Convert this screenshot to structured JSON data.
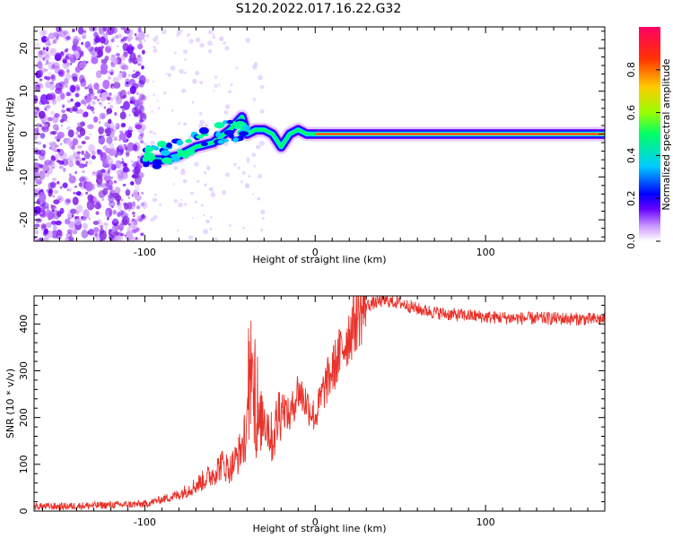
{
  "title": "S120.2022.017.16.22.G32",
  "chart_data": [
    {
      "type": "heatmap",
      "title": "S120.2022.017.16.22.G32",
      "xlabel": "Height of straight line (km)",
      "ylabel": "Frequency (Hz)",
      "xlim": [
        -165,
        170
      ],
      "ylim": [
        -25,
        25
      ],
      "x_ticks": [
        "-100",
        "0",
        "100"
      ],
      "y_ticks": [
        "20",
        "10",
        "0",
        "-10",
        "-20"
      ],
      "colorbar": {
        "label": "Normalized spectral amplitude",
        "range": [
          0,
          1
        ],
        "ticks": [
          "0.0",
          "0.2",
          "0.4",
          "0.6",
          "0.8"
        ],
        "colors": [
          "#ffffff",
          "#cc99ff",
          "#6600ff",
          "#0000ff",
          "#00ccff",
          "#00ff66",
          "#99ff00",
          "#ffcc00",
          "#ff3300",
          "#ff0066"
        ]
      },
      "ridge": {
        "x": [
          -100,
          -90,
          -80,
          -70,
          -60,
          -50,
          -43,
          -40,
          -35,
          -30,
          -25,
          -20,
          -15,
          -10,
          -5,
          0,
          10,
          20,
          30,
          50,
          80,
          100,
          130,
          170
        ],
        "y": [
          -6,
          -6,
          -5,
          -3,
          -2,
          1,
          4,
          0,
          1,
          1,
          0,
          -3,
          0,
          1,
          0,
          0,
          0,
          0,
          0,
          0,
          0,
          0,
          0,
          0
        ]
      }
    },
    {
      "type": "line",
      "xlabel": "Height of straight line (km)",
      "ylabel": "SNR (10 * v/v)",
      "xlim": [
        -165,
        170
      ],
      "ylim": [
        0,
        460
      ],
      "x_ticks": [
        "-100",
        "0",
        "100"
      ],
      "y_ticks": [
        "0",
        "100",
        "200",
        "300",
        "400"
      ],
      "color": "#e8322a",
      "x": [
        -165,
        -150,
        -130,
        -110,
        -100,
        -90,
        -80,
        -70,
        -60,
        -55,
        -50,
        -45,
        -40,
        -37,
        -35,
        -30,
        -25,
        -20,
        -15,
        -10,
        -5,
        0,
        5,
        10,
        15,
        20,
        25,
        30,
        35,
        40,
        50,
        60,
        70,
        80,
        90,
        100,
        120,
        140,
        160,
        170
      ],
      "y": [
        10,
        10,
        12,
        14,
        15,
        25,
        35,
        55,
        80,
        100,
        90,
        120,
        170,
        300,
        160,
        210,
        150,
        230,
        200,
        260,
        230,
        200,
        260,
        300,
        340,
        380,
        420,
        440,
        445,
        450,
        445,
        432,
        425,
        420,
        418,
        415,
        412,
        412,
        410,
        410
      ]
    }
  ]
}
